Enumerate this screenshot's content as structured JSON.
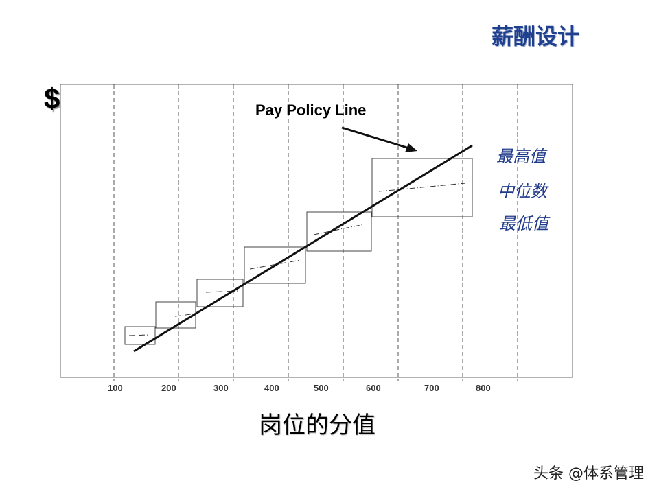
{
  "title": "薪酬设计",
  "y_axis_symbol": "$",
  "x_axis_title": "岗位的分值",
  "footer": "头条 @体系管理",
  "chart_data": {
    "type": "line",
    "annotation": "Pay Policy Line",
    "x_ticks": [
      "100",
      "200",
      "300",
      "400",
      "500",
      "600",
      "700",
      "800"
    ],
    "gridlines": "vertical dashed",
    "legend_labels": [
      "最高值",
      "中位数",
      "最低值"
    ],
    "colors": {
      "legend": "#1f3a8a",
      "title": "#1f3f8f",
      "axis": "#000000"
    }
  }
}
